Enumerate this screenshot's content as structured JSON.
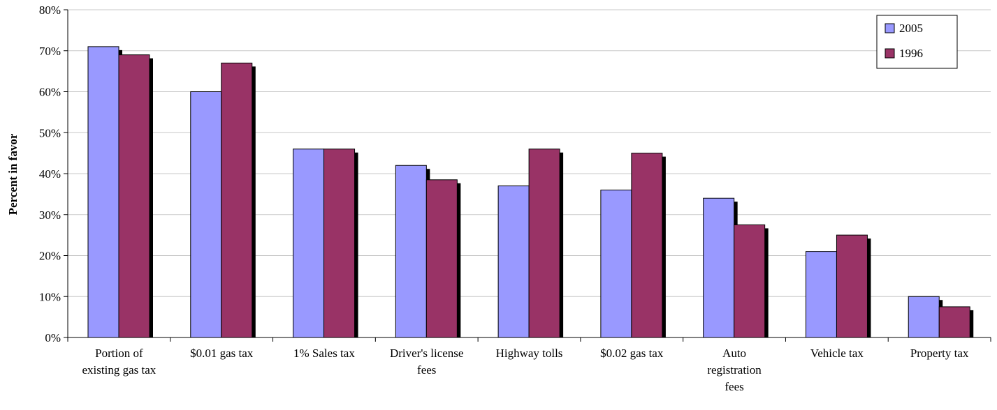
{
  "chart_data": {
    "type": "bar",
    "ylabel": "Percent in favor",
    "ylim": [
      0,
      80
    ],
    "ytick_step": 10,
    "ytick_format": "%",
    "grid": true,
    "legend_position": "top-right",
    "categories": [
      "Portion of existing gas tax",
      "$0.01 gas tax",
      "1% Sales tax",
      "Driver's license fees",
      "Highway tolls",
      "$0.02 gas tax",
      "Auto registration fees",
      "Vehicle tax",
      "Property tax"
    ],
    "category_lines": [
      [
        "Portion of",
        "existing gas tax"
      ],
      [
        "$0.01 gas tax"
      ],
      [
        "1% Sales tax"
      ],
      [
        "Driver's license",
        "fees"
      ],
      [
        "Highway tolls"
      ],
      [
        "$0.02 gas tax"
      ],
      [
        "Auto",
        "registration",
        "fees"
      ],
      [
        "Vehicle tax"
      ],
      [
        "Property tax"
      ]
    ],
    "series": [
      {
        "name": "2005",
        "color": "#9999FF",
        "values": [
          71,
          60,
          46,
          42,
          37,
          36,
          34,
          21,
          10
        ]
      },
      {
        "name": "1996",
        "color": "#993366",
        "values": [
          69,
          67,
          46,
          38.5,
          46,
          45,
          27.5,
          25,
          7.5
        ]
      }
    ]
  }
}
